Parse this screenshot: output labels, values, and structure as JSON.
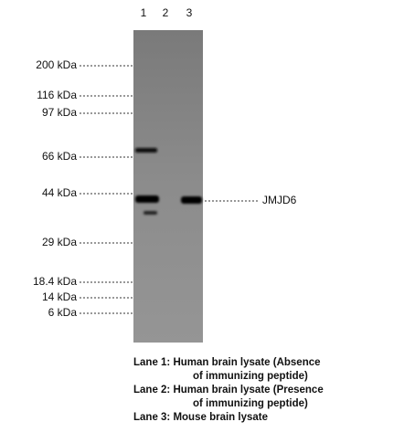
{
  "lanes": [
    "1",
    "2",
    "3"
  ],
  "markers": [
    "200 kDa",
    "116 kDa",
    "97 kDa",
    "66 kDa",
    "44 kDa",
    "29 kDa",
    "18.4 kDa",
    "14 kDa",
    "6 kDa"
  ],
  "band_label": "JMJD6",
  "legend": [
    "Lane 1: Human brain lysate (Absence",
    "of immunizing peptide)",
    "Lane 2: Human brain lysate (Presence",
    "of immunizing peptide)",
    "Lane 3: Mouse brain lysate"
  ]
}
